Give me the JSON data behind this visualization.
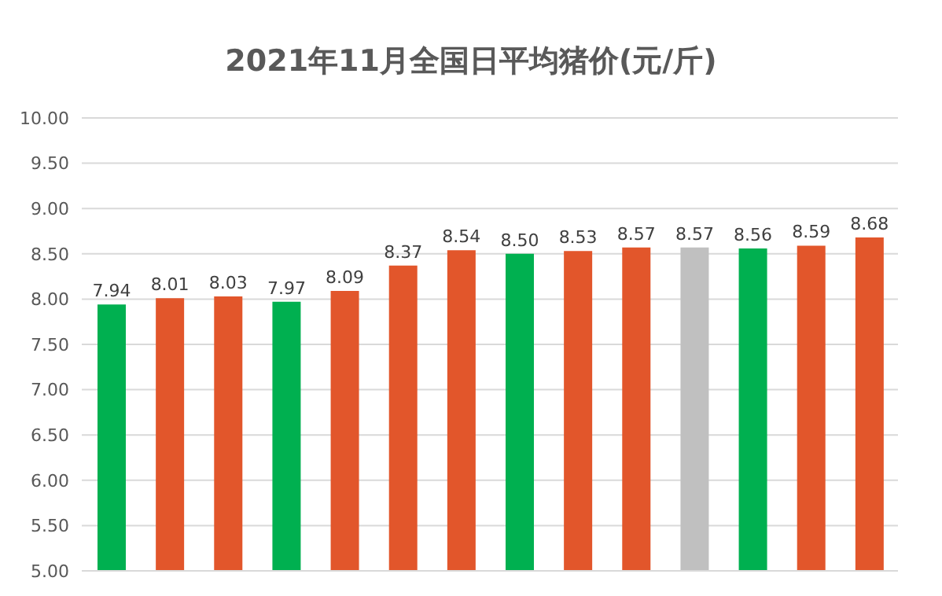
{
  "chart_data": {
    "type": "bar",
    "title": "2021年11月全国日平均猪价(元/斤)",
    "categories": [
      null,
      null,
      null,
      null,
      null,
      null,
      null,
      null,
      null,
      null,
      null,
      null,
      null,
      null
    ],
    "values": [
      7.94,
      8.01,
      8.03,
      7.97,
      8.09,
      8.37,
      8.54,
      8.5,
      8.53,
      8.57,
      8.57,
      8.56,
      8.59,
      8.68
    ],
    "colors": [
      "#00b050",
      "#e2562b",
      "#e2562b",
      "#00b050",
      "#e2562b",
      "#e2562b",
      "#e2562b",
      "#00b050",
      "#e2562b",
      "#e2562b",
      "#c0c0c0",
      "#00b050",
      "#e2562b",
      "#e2562b"
    ],
    "ylim": [
      5,
      10
    ],
    "yticks": [
      {
        "value": 5,
        "label": "5.00"
      },
      {
        "value": 5.5,
        "label": "5.50"
      },
      {
        "value": 6,
        "label": "6.00"
      },
      {
        "value": 6.5,
        "label": "6.50"
      },
      {
        "value": 7,
        "label": "7.00"
      },
      {
        "value": 7.5,
        "label": "7.50"
      },
      {
        "value": 8,
        "label": "8.00"
      },
      {
        "value": 8.5,
        "label": "8.50"
      },
      {
        "value": 9,
        "label": "9.00"
      },
      {
        "value": 9.5,
        "label": "9.50"
      },
      {
        "value": 10,
        "label": "10.00"
      }
    ],
    "value_labels": [
      "7.94",
      "8.01",
      "8.03",
      "7.97",
      "8.09",
      "8.37",
      "8.54",
      "8.50",
      "8.53",
      "8.57",
      "8.57",
      "8.56",
      "8.59",
      "8.68"
    ],
    "grid": "y"
  }
}
